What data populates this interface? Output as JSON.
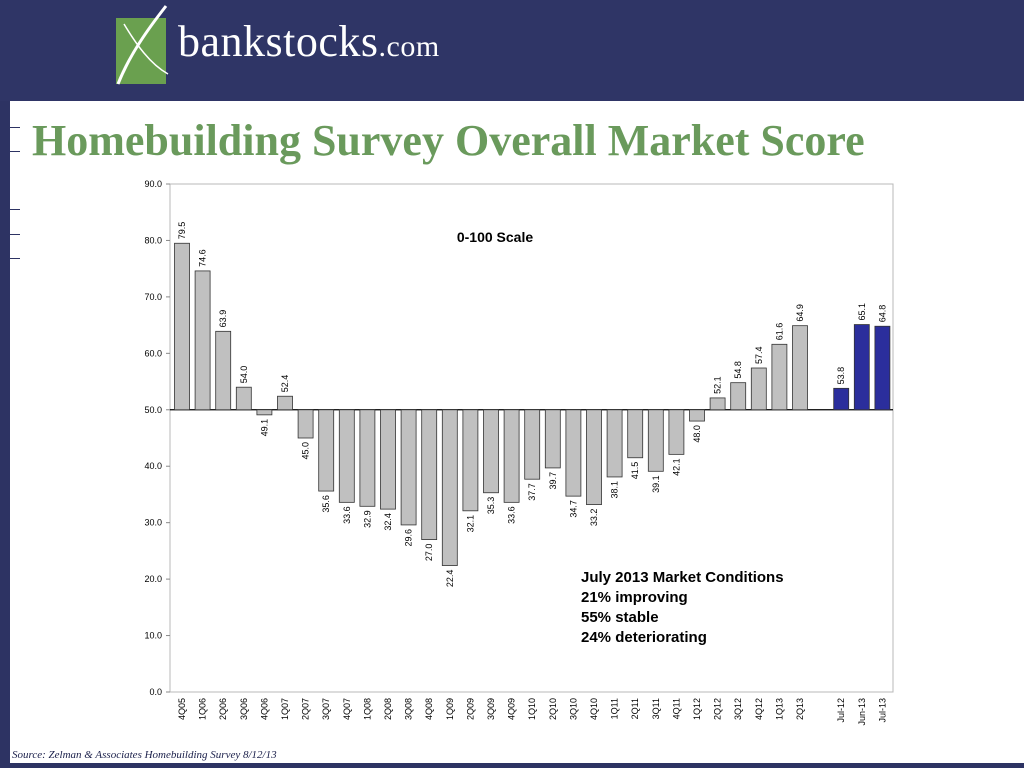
{
  "brand": {
    "name": "bankstocks",
    "suffix": ".com"
  },
  "slide_title": "Homebuilding Survey Overall Market Score",
  "source": "Source: Zelman & Associates Homebuilding Survey 8/12/13",
  "colors": {
    "header": "#2f3566",
    "title": "#6a9a5c",
    "bar_gray": "#c0c0c0",
    "bar_blue": "#2b2e9c"
  },
  "chart_data": {
    "type": "bar",
    "scale_label": "0-100 Scale",
    "baseline": 50,
    "ylim": [
      0,
      90
    ],
    "yticks": [
      "0.0",
      "10.0",
      "20.0",
      "30.0",
      "40.0",
      "50.0",
      "60.0",
      "70.0",
      "80.0",
      "90.0"
    ],
    "grid": false,
    "series": [
      {
        "categories": [
          "4Q05",
          "1Q06",
          "2Q06",
          "3Q06",
          "4Q06",
          "1Q07",
          "2Q07",
          "3Q07",
          "4Q07",
          "1Q08",
          "2Q08",
          "3Q08",
          "4Q08",
          "1Q09",
          "2Q09",
          "3Q09",
          "4Q09",
          "1Q10",
          "2Q10",
          "3Q10",
          "4Q10",
          "1Q11",
          "2Q11",
          "3Q11",
          "4Q11",
          "1Q12",
          "2Q12",
          "3Q12",
          "4Q12",
          "1Q13",
          "2Q13"
        ],
        "values": [
          79.5,
          74.6,
          63.9,
          54.0,
          49.1,
          52.4,
          45.0,
          35.6,
          33.6,
          32.9,
          32.4,
          29.6,
          27.0,
          22.4,
          32.1,
          35.3,
          33.6,
          37.7,
          39.7,
          34.7,
          33.2,
          38.1,
          41.5,
          39.1,
          42.1,
          48.0,
          52.1,
          54.8,
          57.4,
          61.6,
          64.9
        ],
        "color": "#c0c0c0"
      },
      {
        "categories": [
          "Jul-12",
          "Jun-13",
          "Jul-13"
        ],
        "values": [
          53.8,
          65.1,
          64.8
        ],
        "color": "#2b2e9c"
      }
    ],
    "annotation": {
      "heading": "July 2013 Market Conditions",
      "lines": [
        "21% improving",
        "55% stable",
        "24% deteriorating"
      ]
    }
  }
}
